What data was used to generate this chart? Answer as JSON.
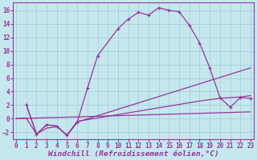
{
  "background_color": "#c5e8ee",
  "grid_color": "#9fccd8",
  "line_color": "#993399",
  "xlabel": "Windchill (Refroidissement éolien,°C)",
  "xlim": [
    -0.3,
    23.3
  ],
  "ylim": [
    -3.0,
    17.2
  ],
  "yticks": [
    -2,
    0,
    2,
    4,
    6,
    8,
    10,
    12,
    14,
    16
  ],
  "xticks": [
    0,
    1,
    2,
    3,
    4,
    5,
    6,
    7,
    8,
    9,
    10,
    11,
    12,
    13,
    14,
    15,
    16,
    17,
    18,
    19,
    20,
    21,
    22,
    23
  ],
  "curve1_x": [
    1,
    2,
    3,
    4,
    5,
    6,
    7,
    8,
    10,
    11,
    12,
    13,
    14,
    15,
    16,
    17,
    18,
    19,
    20,
    21,
    22,
    23
  ],
  "curve1_y": [
    2.1,
    -2.3,
    -0.9,
    -1.1,
    -2.5,
    -0.5,
    4.5,
    9.3,
    13.3,
    14.7,
    15.7,
    15.3,
    16.4,
    16.0,
    15.8,
    13.8,
    11.2,
    7.5,
    3.1,
    1.7,
    3.1,
    3.0
  ],
  "curve2_x": [
    1,
    2,
    3,
    4,
    5,
    6,
    23
  ],
  "curve2_y": [
    2.1,
    -2.3,
    -0.9,
    -1.1,
    -2.5,
    -0.5,
    7.5
  ],
  "curve3_x": [
    0,
    1,
    2,
    3,
    4,
    5,
    6,
    7,
    8,
    9,
    10,
    11,
    12,
    13,
    14,
    15,
    16,
    17,
    18,
    19,
    20,
    21,
    22,
    23
  ],
  "curve3_y": [
    0.0,
    0.1,
    -2.3,
    -1.4,
    -1.2,
    -2.4,
    -0.4,
    -0.15,
    0.1,
    0.35,
    0.6,
    0.85,
    1.1,
    1.35,
    1.6,
    1.85,
    2.1,
    2.35,
    2.6,
    2.8,
    3.0,
    3.1,
    3.2,
    3.4
  ],
  "curve4_x": [
    0,
    23
  ],
  "curve4_y": [
    0.0,
    1.0
  ]
}
